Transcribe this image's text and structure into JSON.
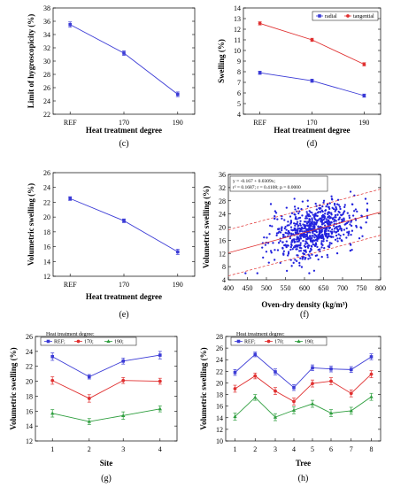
{
  "chart_data": [
    {
      "id": "c",
      "panel_label": "(c)",
      "type": "line",
      "categories": [
        "REF",
        "170",
        "190"
      ],
      "xlabel": "Heat treatment degree",
      "ylabel": "Limit of hygroscopicity (%)",
      "ylim": [
        22,
        38
      ],
      "yticks": [
        22,
        24,
        26,
        28,
        30,
        32,
        34,
        36,
        38
      ],
      "series": [
        {
          "color": "#3b3bd6",
          "values": [
            35.5,
            31.2,
            25.0
          ],
          "errors": [
            0.4,
            0.35,
            0.35
          ]
        }
      ]
    },
    {
      "id": "d",
      "panel_label": "(d)",
      "type": "line",
      "categories": [
        "REF",
        "170",
        "190"
      ],
      "xlabel": "Heat treatment degree",
      "ylabel": "Swelling (%)",
      "ylim": [
        4,
        14
      ],
      "yticks": [
        4,
        5,
        6,
        7,
        8,
        9,
        10,
        11,
        12,
        13,
        14
      ],
      "legend": "top-right",
      "series": [
        {
          "name": "radial",
          "color": "#3b3bd6",
          "values": [
            7.9,
            7.15,
            5.75
          ],
          "errors": [
            0.15,
            0.15,
            0.15
          ]
        },
        {
          "name": "tangential",
          "color": "#e03030",
          "values": [
            12.55,
            11.0,
            8.7
          ],
          "errors": [
            0.15,
            0.15,
            0.15
          ]
        }
      ]
    },
    {
      "id": "e",
      "panel_label": "(e)",
      "type": "line",
      "categories": [
        "REF",
        "170",
        "190"
      ],
      "xlabel": "Heat treatment degree",
      "ylabel": "Volumetric swelling (%)",
      "ylim": [
        12,
        26
      ],
      "yticks": [
        12,
        14,
        16,
        18,
        20,
        22,
        24,
        26
      ],
      "series": [
        {
          "color": "#3b3bd6",
          "values": [
            22.5,
            19.5,
            15.3
          ],
          "errors": [
            0.25,
            0.25,
            0.35
          ]
        }
      ]
    },
    {
      "id": "f",
      "panel_label": "(f)",
      "type": "scatter",
      "xlabel": "Oven-dry density (kg/m³)",
      "ylabel": "Volumetric swelling (%)",
      "xlim": [
        400,
        800
      ],
      "xticks": [
        400,
        450,
        500,
        550,
        600,
        650,
        700,
        750,
        800
      ],
      "ylim": [
        4,
        36
      ],
      "yticks": [
        4,
        8,
        12,
        16,
        20,
        24,
        28,
        32,
        36
      ],
      "annotation": [
        "y = -0.167 + 0.0309x;",
        "r² = 0.1687; r = 0.4108; p = 0.0000"
      ],
      "regression": {
        "intercept": -0.167,
        "slope": 0.0309
      },
      "point_cloud": {
        "count": 750,
        "x_mean": 625,
        "x_sd": 55,
        "y_sd": 3.9,
        "seed": 7
      }
    },
    {
      "id": "g",
      "panel_label": "(g)",
      "type": "line",
      "categories": [
        "1",
        "2",
        "3",
        "4"
      ],
      "xlabel": "Site",
      "ylabel": "Volumetric swelling (%)",
      "ylim": [
        12,
        26
      ],
      "yticks": [
        12,
        14,
        16,
        18,
        20,
        22,
        24,
        26
      ],
      "legend_title": "Heat treatment degree:",
      "series": [
        {
          "name": "REF",
          "color": "#3b3bd6",
          "values": [
            23.3,
            20.6,
            22.7,
            23.5
          ],
          "errors": [
            0.5,
            0.3,
            0.4,
            0.5
          ]
        },
        {
          "name": "170",
          "color": "#e03030",
          "values": [
            20.1,
            17.7,
            20.1,
            20.0
          ],
          "errors": [
            0.5,
            0.5,
            0.4,
            0.4
          ]
        },
        {
          "name": "190",
          "color": "#2e9e3e",
          "values": [
            15.7,
            14.6,
            15.4,
            16.3
          ],
          "errors": [
            0.5,
            0.4,
            0.5,
            0.4
          ]
        }
      ]
    },
    {
      "id": "h",
      "panel_label": "(h)",
      "type": "line",
      "categories": [
        "1",
        "2",
        "3",
        "4",
        "5",
        "6",
        "7",
        "8"
      ],
      "xlabel": "Tree",
      "ylabel": "Volumetric swelling (%)",
      "ylim": [
        10,
        28
      ],
      "yticks": [
        10,
        12,
        14,
        16,
        18,
        20,
        22,
        24,
        26,
        28
      ],
      "legend_title": "Heat treatment degree:",
      "series": [
        {
          "name": "REF",
          "color": "#3b3bd6",
          "values": [
            21.8,
            24.9,
            21.9,
            19.2,
            22.6,
            22.4,
            22.3,
            24.5
          ],
          "errors": [
            0.5,
            0.4,
            0.5,
            0.5,
            0.5,
            0.5,
            0.5,
            0.5
          ]
        },
        {
          "name": "170",
          "color": "#e03030",
          "values": [
            19.0,
            21.2,
            18.6,
            16.8,
            19.9,
            20.3,
            18.2,
            21.5
          ],
          "errors": [
            0.6,
            0.5,
            0.6,
            0.6,
            0.6,
            0.6,
            0.6,
            0.6
          ]
        },
        {
          "name": "190",
          "color": "#2e9e3e",
          "values": [
            14.2,
            17.5,
            14.1,
            15.3,
            16.4,
            14.8,
            15.2,
            17.6
          ],
          "errors": [
            0.6,
            0.5,
            0.6,
            0.6,
            0.6,
            0.6,
            0.6,
            0.6
          ]
        }
      ]
    }
  ]
}
